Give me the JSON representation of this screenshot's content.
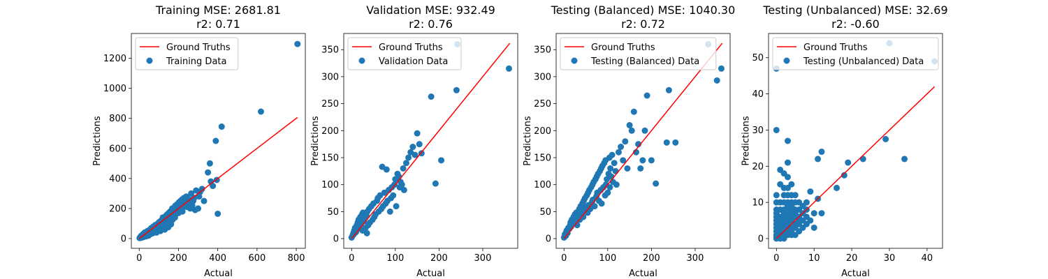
{
  "colors": {
    "fit_line": "#ff0000",
    "points": "#1f77b4",
    "axes": "#000000",
    "legend_border": "#cccccc"
  },
  "chart_data": [
    {
      "type": "scatter",
      "title": "Training MSE: 2681.81",
      "subtitle": "r2: 0.71",
      "xlabel": "Actual",
      "ylabel": "Predictions",
      "xlim": [
        -40,
        846
      ],
      "ylim": [
        -65,
        1365
      ],
      "xticks": [
        0,
        200,
        400,
        600,
        800
      ],
      "yticks": [
        0,
        200,
        400,
        600,
        800,
        1000,
        1200
      ],
      "grid": false,
      "legend_position": "top-left",
      "legend": [
        "Ground Truths",
        "Training Data"
      ],
      "line": {
        "name": "Ground Truths",
        "x": [
          0,
          806
        ],
        "y": [
          0,
          806
        ]
      },
      "series": [
        {
          "name": "Training Data",
          "x": [
            2,
            5,
            8,
            10,
            12,
            15,
            18,
            20,
            22,
            25,
            28,
            30,
            32,
            35,
            38,
            40,
            42,
            45,
            48,
            50,
            52,
            55,
            58,
            60,
            62,
            65,
            68,
            70,
            72,
            75,
            78,
            80,
            82,
            85,
            88,
            90,
            92,
            95,
            98,
            100,
            102,
            105,
            108,
            110,
            112,
            115,
            118,
            120,
            122,
            125,
            128,
            130,
            132,
            135,
            138,
            140,
            142,
            145,
            148,
            150,
            152,
            155,
            158,
            160,
            162,
            165,
            168,
            170,
            172,
            175,
            178,
            180,
            182,
            185,
            188,
            190,
            192,
            195,
            198,
            200,
            202,
            205,
            208,
            210,
            212,
            215,
            218,
            220,
            222,
            225,
            228,
            230,
            235,
            240,
            245,
            250,
            255,
            260,
            265,
            270,
            275,
            280,
            285,
            290,
            300,
            305,
            310,
            320,
            330,
            350,
            360,
            365,
            375,
            390,
            395,
            400,
            420,
            620,
            806
          ],
          "y": [
            3,
            8,
            15,
            5,
            20,
            12,
            25,
            30,
            10,
            18,
            40,
            22,
            35,
            15,
            45,
            28,
            50,
            38,
            20,
            55,
            42,
            60,
            30,
            48,
            70,
            52,
            35,
            65,
            80,
            45,
            58,
            75,
            90,
            55,
            40,
            85,
            70,
            100,
            62,
            78,
            110,
            88,
            50,
            95,
            120,
            72,
            105,
            140,
            80,
            98,
            130,
            60,
            115,
            150,
            90,
            120,
            160,
            100,
            75,
            170,
            130,
            110,
            180,
            145,
            95,
            160,
            200,
            125,
            190,
            150,
            175,
            210,
            140,
            220,
            165,
            195,
            180,
            230,
            205,
            170,
            240,
            215,
            190,
            250,
            200,
            225,
            260,
            180,
            240,
            210,
            270,
            225,
            250,
            280,
            210,
            240,
            260,
            200,
            300,
            220,
            250,
            270,
            190,
            320,
            200,
            280,
            310,
            330,
            250,
            440,
            500,
            380,
            350,
            650,
            390,
            165,
            745,
            845,
            1295
          ]
        }
      ]
    },
    {
      "type": "scatter",
      "title": "Validation MSE: 932.49",
      "subtitle": "r2: 0.76",
      "xlabel": "Actual",
      "ylabel": "Predictions",
      "xlim": [
        -18,
        380
      ],
      "ylim": [
        -18,
        380
      ],
      "xticks": [
        0,
        100,
        200,
        300
      ],
      "yticks": [
        0,
        50,
        100,
        150,
        200,
        250,
        300,
        350
      ],
      "grid": false,
      "legend_position": "top-left",
      "legend": [
        "Ground Truths",
        "Validation Data"
      ],
      "line": {
        "name": "Ground Truths",
        "x": [
          0,
          362
        ],
        "y": [
          0,
          362
        ]
      },
      "series": [
        {
          "name": "Validation Data",
          "x": [
            0,
            2,
            4,
            5,
            6,
            8,
            10,
            12,
            14,
            15,
            16,
            18,
            20,
            22,
            24,
            25,
            26,
            28,
            30,
            32,
            34,
            35,
            36,
            38,
            40,
            42,
            45,
            48,
            50,
            52,
            55,
            58,
            60,
            62,
            65,
            68,
            70,
            72,
            75,
            78,
            80,
            82,
            85,
            88,
            90,
            92,
            95,
            98,
            100,
            102,
            105,
            108,
            110,
            112,
            115,
            118,
            120,
            125,
            130,
            135,
            140,
            145,
            150,
            155,
            160,
            182,
            192,
            205,
            240,
            242,
            360
          ],
          "y": [
            2,
            5,
            10,
            8,
            15,
            20,
            12,
            25,
            30,
            18,
            35,
            22,
            40,
            28,
            45,
            15,
            48,
            32,
            38,
            20,
            42,
            10,
            50,
            25,
            55,
            30,
            60,
            35,
            65,
            40,
            45,
            70,
            75,
            50,
            80,
            55,
            133,
            60,
            85,
            65,
            128,
            70,
            90,
            50,
            75,
            95,
            80,
            100,
            110,
            60,
            120,
            115,
            95,
            105,
            100,
            130,
            90,
            140,
            150,
            160,
            170,
            155,
            195,
            175,
            158,
            263,
            102,
            145,
            275,
            360,
            315
          ]
        }
      ]
    },
    {
      "type": "scatter",
      "title": "Testing (Balanced) MSE: 1040.30",
      "subtitle": "r2: 0.72",
      "xlabel": "Actual",
      "ylabel": "Predictions",
      "xlim": [
        -18,
        380
      ],
      "ylim": [
        -18,
        380
      ],
      "xticks": [
        0,
        100,
        200,
        300
      ],
      "yticks": [
        0,
        50,
        100,
        150,
        200,
        250,
        300,
        350
      ],
      "grid": false,
      "legend_position": "top-left",
      "legend": [
        "Ground Truths",
        "Testing (Balanced) Data"
      ],
      "line": {
        "name": "Ground Truths",
        "x": [
          0,
          362
        ],
        "y": [
          0,
          362
        ]
      },
      "series": [
        {
          "name": "Testing (Balanced) Data",
          "x": [
            0,
            2,
            4,
            5,
            6,
            8,
            10,
            12,
            14,
            15,
            16,
            18,
            20,
            22,
            24,
            25,
            26,
            28,
            30,
            32,
            34,
            35,
            36,
            38,
            40,
            42,
            44,
            45,
            46,
            48,
            50,
            52,
            54,
            55,
            56,
            58,
            60,
            62,
            64,
            65,
            66,
            68,
            70,
            72,
            74,
            75,
            76,
            78,
            80,
            82,
            84,
            85,
            86,
            88,
            90,
            92,
            94,
            95,
            96,
            98,
            100,
            102,
            104,
            105,
            106,
            108,
            110,
            112,
            115,
            118,
            120,
            125,
            130,
            135,
            140,
            145,
            150,
            155,
            160,
            165,
            170,
            175,
            180,
            185,
            190,
            200,
            210,
            235,
            240,
            255,
            330,
            350,
            360
          ],
          "y": [
            2,
            8,
            5,
            12,
            15,
            10,
            20,
            18,
            25,
            30,
            22,
            35,
            28,
            40,
            32,
            45,
            38,
            48,
            25,
            50,
            42,
            55,
            35,
            60,
            45,
            65,
            40,
            70,
            52,
            75,
            58,
            80,
            48,
            85,
            62,
            90,
            55,
            95,
            68,
            100,
            72,
            105,
            60,
            110,
            78,
            115,
            85,
            120,
            70,
            125,
            90,
            130,
            65,
            135,
            95,
            140,
            80,
            145,
            100,
            110,
            85,
            120,
            150,
            95,
            130,
            115,
            155,
            105,
            140,
            125,
            100,
            160,
            170,
            145,
            180,
            130,
            210,
            200,
            235,
            160,
            175,
            130,
            145,
            200,
            265,
            145,
            102,
            178,
            275,
            178,
            360,
            293,
            315
          ]
        }
      ]
    },
    {
      "type": "scatter",
      "title": "Testing (Unbalanced) MSE: 32.69",
      "subtitle": "r2: -0.60",
      "xlabel": "Actual",
      "ylabel": "Predictions",
      "xlim": [
        -2.1,
        44.1
      ],
      "ylim": [
        -2.7,
        56.7
      ],
      "xticks": [
        0,
        10,
        20,
        30,
        40
      ],
      "yticks": [
        0,
        10,
        20,
        30,
        40,
        50
      ],
      "grid": false,
      "legend_position": "top-left",
      "legend": [
        "Ground Truths",
        "Testing (Unbalanced) Data"
      ],
      "line": {
        "name": "Ground Truths",
        "x": [
          0,
          42
        ],
        "y": [
          0,
          42
        ]
      },
      "series": [
        {
          "name": "Testing (Unbalanced) Data",
          "x": [
            0,
            0,
            0,
            0,
            0,
            0,
            0,
            0,
            0,
            0,
            0,
            0,
            0,
            0,
            1,
            1,
            1,
            1,
            1,
            1,
            1,
            1,
            1,
            1,
            1,
            1,
            2,
            2,
            2,
            2,
            2,
            2,
            2,
            2,
            2,
            2,
            2,
            2,
            2,
            2,
            3,
            3,
            3,
            3,
            3,
            3,
            3,
            3,
            3,
            3,
            3,
            3,
            3,
            3,
            3,
            4,
            4,
            4,
            4,
            4,
            4,
            4,
            4,
            4,
            4,
            4,
            5,
            5,
            5,
            5,
            5,
            5,
            5,
            5,
            6,
            6,
            6,
            6,
            6,
            6,
            7,
            7,
            7,
            7,
            8,
            8,
            8,
            8,
            9,
            9,
            10,
            10,
            11,
            11,
            12,
            12,
            16,
            18,
            19,
            23,
            29,
            30,
            34,
            42
          ],
          "y": [
            47,
            30,
            12,
            10,
            8,
            7,
            6,
            5,
            4,
            3,
            2,
            1,
            0.5,
            0,
            19,
            15,
            10,
            8,
            6,
            5,
            4,
            3,
            2,
            1,
            0.5,
            0,
            18,
            14,
            12,
            10,
            8,
            7,
            6,
            5,
            4,
            3,
            2,
            1,
            0.5,
            0,
            27,
            21,
            17,
            14,
            12,
            10,
            9,
            8,
            7,
            6,
            5,
            4,
            3,
            2,
            1,
            15,
            12,
            10,
            9,
            8,
            7,
            6,
            5,
            3,
            2,
            1,
            12,
            10,
            8,
            7,
            6,
            4,
            3,
            1,
            10,
            8,
            6,
            5,
            4,
            2,
            9,
            7,
            5,
            3,
            10,
            8,
            6,
            4,
            13,
            5,
            3,
            7,
            22,
            11,
            24,
            7,
            14,
            17.5,
            21,
            22,
            27.5,
            54,
            22,
            49
          ]
        }
      ]
    }
  ]
}
